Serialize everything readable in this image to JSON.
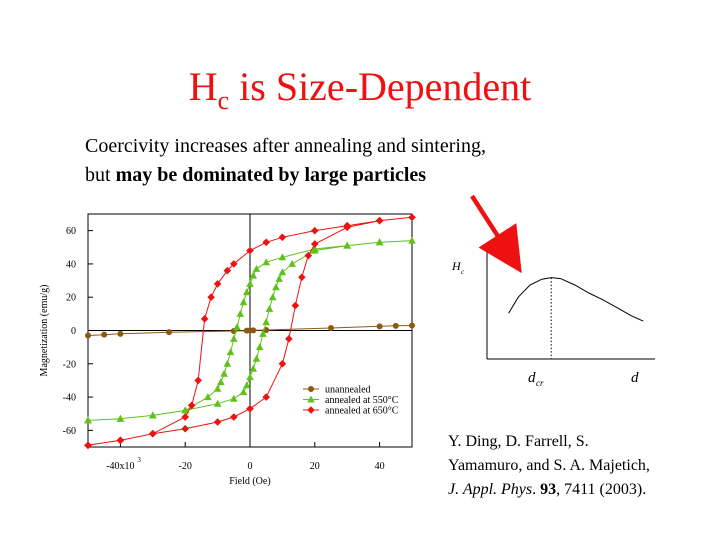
{
  "slide": {
    "title_main": "H",
    "title_sub": "c",
    "title_rest": " is Size-Dependent",
    "subtitle_line1": "Coercivity increases after annealing and sintering,",
    "subtitle_line2_plain": "but ",
    "subtitle_line2_bold": "may be dominated by large particles",
    "reference": {
      "authors1": "Y. Ding, D. Farrell, S.",
      "authors2": "Yamamuro, and S. A. Majetich,",
      "journal": "J. Appl. Phys",
      "after_journal": ". ",
      "volume": "93",
      "pages_year": ", 7411 (2003)."
    },
    "arrow_color": "#ee1111",
    "title_color": "#ee1111"
  },
  "chart_data": [
    {
      "type": "line",
      "xlabel": "Field (Oe)",
      "ylabel": "Magnetization (emu/g)",
      "xlim": [
        -50000,
        50000
      ],
      "ylim": [
        -70,
        70
      ],
      "x_ticks": [
        {
          "value": -40000,
          "label": "-40x10",
          "exp": "3"
        },
        {
          "value": -20000,
          "label": "-20"
        },
        {
          "value": 0,
          "label": "0"
        },
        {
          "value": 20000,
          "label": "20"
        },
        {
          "value": 40000,
          "label": "40"
        }
      ],
      "y_ticks": [
        {
          "value": 60,
          "label": "60"
        },
        {
          "value": 40,
          "label": "40"
        },
        {
          "value": 20,
          "label": "20"
        },
        {
          "value": 0,
          "label": "0"
        },
        {
          "value": -20,
          "label": "-20"
        },
        {
          "value": -40,
          "label": "-40"
        },
        {
          "value": -60,
          "label": "-60"
        }
      ],
      "grid": false,
      "legend_position": "bottom-right",
      "series": [
        {
          "name": "unannealed",
          "color": "#8b5a10",
          "marker": "circle",
          "points": [
            [
              -50000,
              -3
            ],
            [
              -45000,
              -2.5
            ],
            [
              -40000,
              -2
            ],
            [
              -25000,
              -1
            ],
            [
              -5000,
              -0.3
            ],
            [
              -1000,
              -0.1
            ],
            [
              0,
              0
            ],
            [
              1000,
              0.1
            ],
            [
              5000,
              0.3
            ],
            [
              25000,
              1.5
            ],
            [
              40000,
              2.5
            ],
            [
              45000,
              2.8
            ],
            [
              50000,
              3
            ]
          ]
        },
        {
          "name": "annealed at 550°C",
          "color": "#5fc21a",
          "marker": "triangle",
          "points": [
            [
              -50000,
              -54
            ],
            [
              -40000,
              -53
            ],
            [
              -30000,
              -51
            ],
            [
              -20000,
              -48
            ],
            [
              -10000,
              -44
            ],
            [
              -5000,
              -41
            ],
            [
              -2000,
              -37
            ],
            [
              -1000,
              -33
            ],
            [
              0,
              -28
            ],
            [
              1000,
              -23
            ],
            [
              2000,
              -17
            ],
            [
              3000,
              -10
            ],
            [
              4000,
              -2
            ],
            [
              5000,
              5
            ],
            [
              6000,
              13
            ],
            [
              7000,
              20
            ],
            [
              8000,
              26
            ],
            [
              9000,
              31
            ],
            [
              10000,
              35
            ],
            [
              13000,
              40
            ],
            [
              20000,
              48
            ],
            [
              30000,
              51
            ],
            [
              40000,
              53
            ],
            [
              50000,
              54
            ],
            [
              40000,
              53
            ],
            [
              30000,
              51
            ],
            [
              20000,
              49
            ],
            [
              10000,
              44
            ],
            [
              5000,
              41
            ],
            [
              2000,
              37
            ],
            [
              1000,
              33
            ],
            [
              0,
              28
            ],
            [
              -1000,
              23
            ],
            [
              -2000,
              17
            ],
            [
              -3000,
              10
            ],
            [
              -4000,
              2
            ],
            [
              -5000,
              -5
            ],
            [
              -6000,
              -13
            ],
            [
              -7000,
              -20
            ],
            [
              -8000,
              -26
            ],
            [
              -9000,
              -31
            ],
            [
              -10000,
              -35
            ],
            [
              -13000,
              -40
            ],
            [
              -20000,
              -48
            ],
            [
              -30000,
              -51
            ],
            [
              -40000,
              -53
            ],
            [
              -50000,
              -54
            ]
          ]
        },
        {
          "name": "annealed at 650°C",
          "color": "#ee1111",
          "marker": "diamond",
          "points": [
            [
              -50000,
              -69
            ],
            [
              -40000,
              -66
            ],
            [
              -30000,
              -62
            ],
            [
              -20000,
              -59
            ],
            [
              -10000,
              -55
            ],
            [
              -5000,
              -52
            ],
            [
              0,
              -47
            ],
            [
              5000,
              -40
            ],
            [
              10000,
              -20
            ],
            [
              12000,
              -5
            ],
            [
              14000,
              15
            ],
            [
              16000,
              32
            ],
            [
              18000,
              45
            ],
            [
              20000,
              52
            ],
            [
              30000,
              62
            ],
            [
              40000,
              66
            ],
            [
              50000,
              68
            ],
            [
              40000,
              66
            ],
            [
              30000,
              63
            ],
            [
              20000,
              60
            ],
            [
              10000,
              56
            ],
            [
              5000,
              53
            ],
            [
              0,
              48
            ],
            [
              -5000,
              40
            ],
            [
              -7000,
              36
            ],
            [
              -10000,
              28
            ],
            [
              -12000,
              20
            ],
            [
              -14000,
              7
            ],
            [
              -16000,
              -30
            ],
            [
              -18000,
              -45
            ],
            [
              -20000,
              -52
            ],
            [
              -30000,
              -62
            ],
            [
              -40000,
              -66
            ],
            [
              -50000,
              -69
            ]
          ]
        }
      ]
    },
    {
      "type": "line",
      "xlabel": "d",
      "ylabel": "Hc",
      "ylabel_main": "H",
      "ylabel_sub": "c",
      "annotations": [
        {
          "x_label": "d",
          "x_label_sub": "cr",
          "x": 1.0,
          "style": "dotted vertical line at peak"
        }
      ],
      "x_range": [
        0,
        3.2
      ],
      "y_range": [
        0,
        1
      ],
      "series": [
        {
          "name": "",
          "points": [
            [
              0.1,
              0.3
            ],
            [
              0.3,
              0.6
            ],
            [
              0.55,
              0.83
            ],
            [
              0.8,
              0.94
            ],
            [
              1.0,
              0.97
            ],
            [
              1.2,
              0.95
            ],
            [
              1.5,
              0.83
            ],
            [
              1.8,
              0.68
            ],
            [
              2.1,
              0.55
            ],
            [
              2.4,
              0.4
            ],
            [
              2.7,
              0.25
            ],
            [
              2.95,
              0.15
            ]
          ]
        }
      ]
    }
  ]
}
